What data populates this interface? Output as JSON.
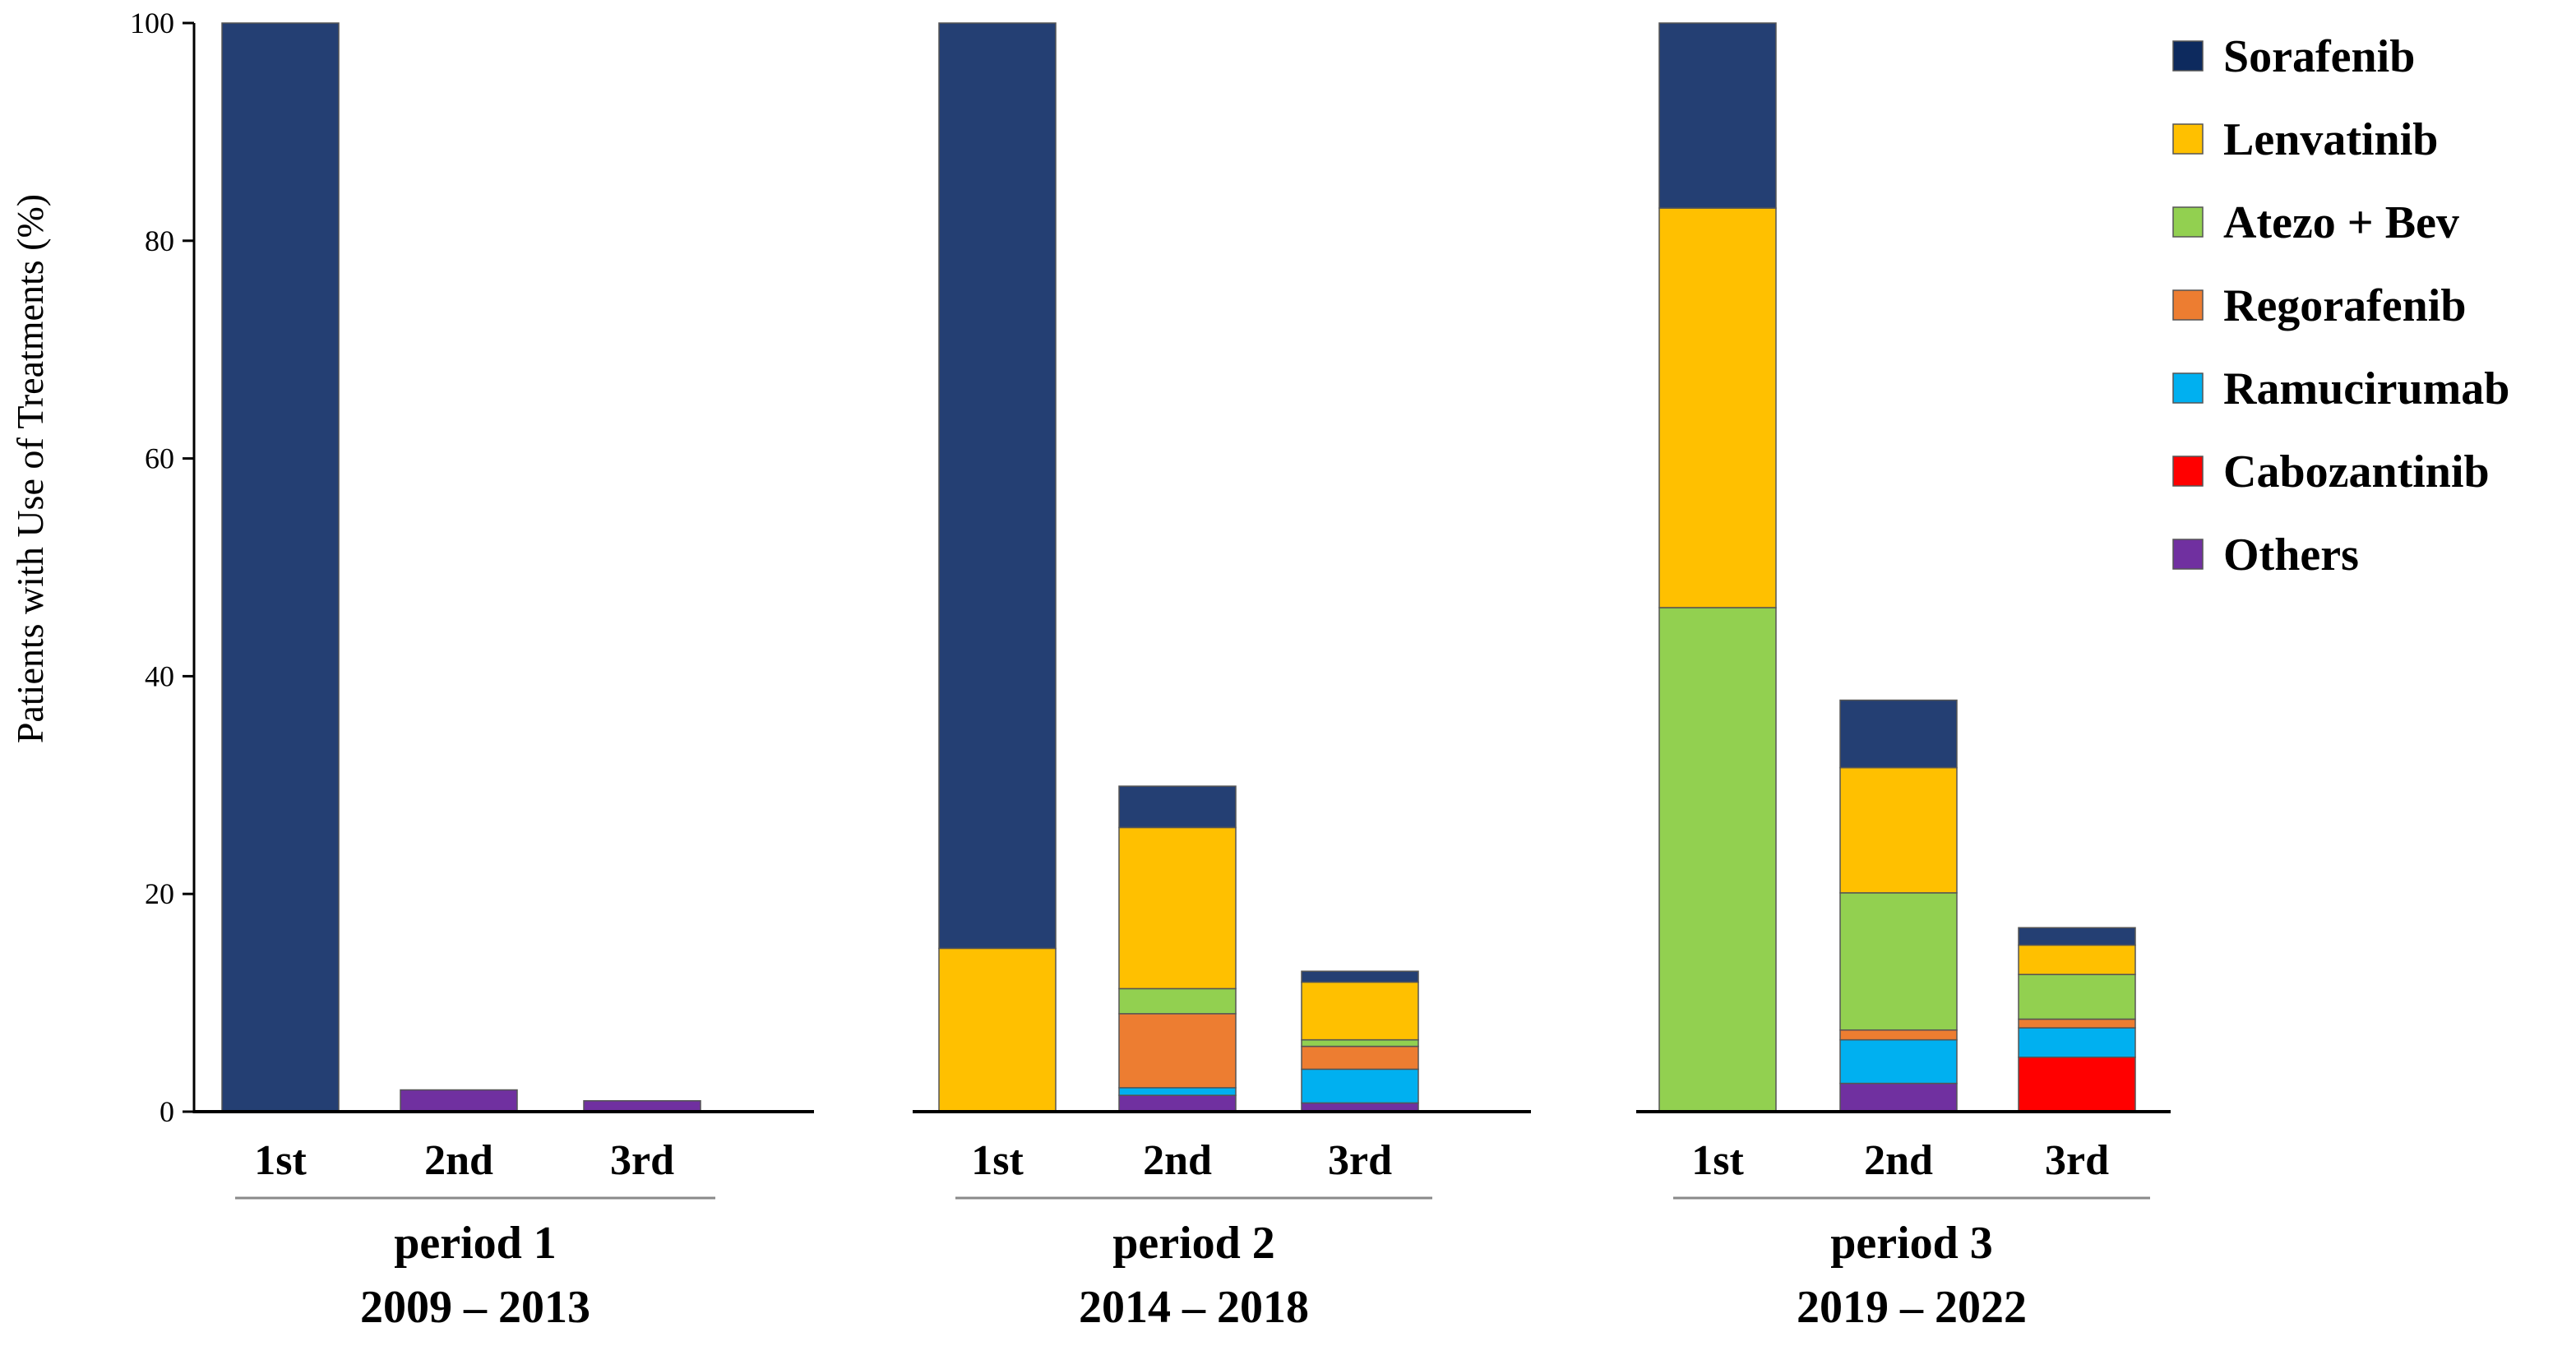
{
  "chart_data": {
    "type": "bar",
    "stacked": true,
    "ylabel": "Patients with Use of Treatments (%)",
    "ylim": [
      0,
      100
    ],
    "yticks": [
      0,
      20,
      40,
      60,
      80,
      100
    ],
    "grid": false,
    "legend_position": "top-right",
    "categories": [
      {
        "label": "1st",
        "group": 0
      },
      {
        "label": "2nd",
        "group": 0
      },
      {
        "label": "3rd",
        "group": 0
      },
      {
        "label": "1st",
        "group": 1
      },
      {
        "label": "2nd",
        "group": 1
      },
      {
        "label": "3rd",
        "group": 1
      },
      {
        "label": "1st",
        "group": 2
      },
      {
        "label": "2nd",
        "group": 2
      },
      {
        "label": "3rd",
        "group": 2
      }
    ],
    "groups": [
      {
        "name": "period 1",
        "range": "2009 – 2013"
      },
      {
        "name": "period 2",
        "range": "2014 – 2018"
      },
      {
        "name": "period 3",
        "range": "2019 – 2022"
      }
    ],
    "series": [
      {
        "name": "Others",
        "color": "#7030A0",
        "values": [
          0,
          2,
          1,
          0,
          1.5,
          0.8,
          0,
          2.6,
          0
        ]
      },
      {
        "name": "Cabozantinib",
        "color": "#FF0000",
        "values": [
          0,
          0,
          0,
          0,
          0,
          0,
          0,
          0,
          5
        ]
      },
      {
        "name": "Ramucirumab",
        "color": "#00B0F0",
        "values": [
          0,
          0,
          0,
          0,
          0.7,
          3.1,
          0,
          4,
          2.7
        ]
      },
      {
        "name": "Regorafenib",
        "color": "#ED7D31",
        "values": [
          0,
          0,
          0,
          0,
          6.8,
          2.1,
          0,
          0.9,
          0.8
        ]
      },
      {
        "name": "Atezo + Bev",
        "color": "#92D050",
        "values": [
          0,
          0,
          0,
          0,
          2.3,
          0.6,
          46.3,
          12.6,
          4.1
        ]
      },
      {
        "name": "Lenvatinib",
        "color": "#FFC000",
        "values": [
          0,
          0,
          0,
          15,
          14.8,
          5.3,
          36.7,
          11.5,
          2.7
        ]
      },
      {
        "name": "Sorafenib",
        "color": "#243F73",
        "values": [
          100,
          0,
          0,
          85,
          3.8,
          1,
          17,
          6.2,
          1.6
        ]
      }
    ],
    "legend_order": [
      "Sorafenib",
      "Lenvatinib",
      "Atezo + Bev",
      "Regorafenib",
      "Ramucirumab",
      "Cabozantinib",
      "Others"
    ],
    "legend_colors": {
      "Sorafenib": "#0D2A5E",
      "Lenvatinib": "#FFC000",
      "Atezo + Bev": "#92D050",
      "Regorafenib": "#ED7D31",
      "Ramucirumab": "#00B0F0",
      "Cabozantinib": "#FF0000",
      "Others": "#7030A0"
    }
  }
}
